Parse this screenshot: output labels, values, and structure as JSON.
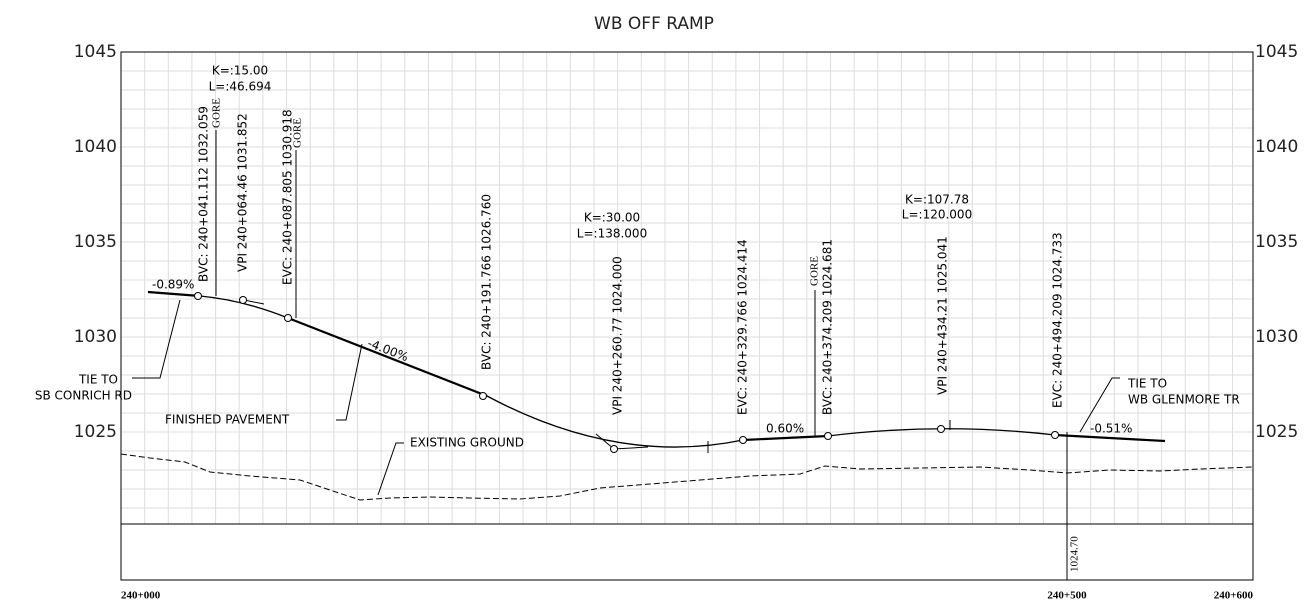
{
  "title": "WB OFF RAMP",
  "elevation_labels": [
    "1045",
    "1040",
    "1035",
    "1030",
    "1025"
  ],
  "chainage_labels": [
    "240+000",
    "240+500",
    "240+600"
  ],
  "stations": [
    {
      "label": "BVC: 240+041.112 1032.059"
    },
    {
      "label": "VPI 240+064.46 1031.852"
    },
    {
      "label": "EVC: 240+087.805 1030.918"
    },
    {
      "label": "BVC: 240+191.766 1026.760"
    },
    {
      "label": "VPI 240+260.77 1024.000"
    },
    {
      "label": "EVC: 240+329.766 1024.414"
    },
    {
      "label": "BVC: 240+374.209 1024.681"
    },
    {
      "label": "VPI 240+434.21 1025.041"
    },
    {
      "label": "EVC: 240+494.209 1024.733"
    }
  ],
  "gore_labels": [
    "GORE",
    "GORE",
    "GORE"
  ],
  "curves": [
    {
      "k": "K=:15.00",
      "l": "L=:46.694"
    },
    {
      "k": "K=:30.00",
      "l": "L=:138.000"
    },
    {
      "k": "K=:107.78",
      "l": "L=:120.000"
    }
  ],
  "grades": [
    "-0.89%",
    "-4.00%",
    "0.60%",
    "-0.51%"
  ],
  "tie_start": [
    "TIE TO",
    "SB CONRICH RD"
  ],
  "tie_end": [
    "TIE TO",
    "WB GLENMORE TR"
  ],
  "finished_pavement": "FINISHED PAVEMENT",
  "existing_ground": "EXISTING GROUND",
  "band_value": "1024.70"
}
